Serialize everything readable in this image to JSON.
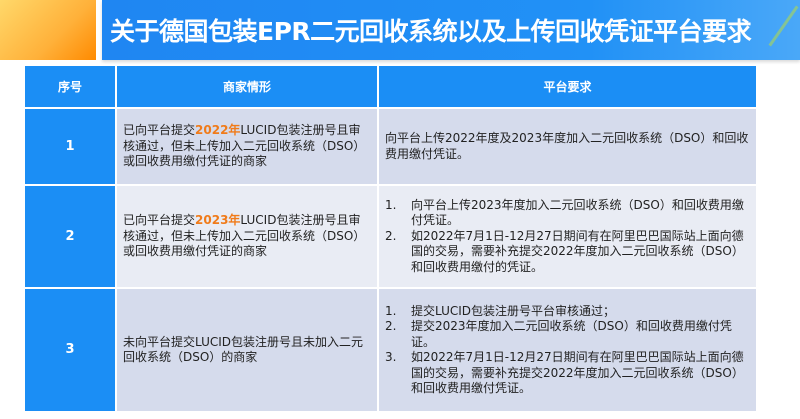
{
  "title": "关于德国包装EPR二元回收系统以及上传回收凭证平台要求",
  "colors": {
    "accent_blue": "#1b8ef5",
    "highlight_orange": "#f07b1a",
    "row_dark": "#d5dbec",
    "row_light": "#e9ecf4"
  },
  "table": {
    "headers": [
      "序号",
      "商家情形",
      "平台要求"
    ],
    "rows": [
      {
        "num": "1",
        "merchant_pre": "已向平台提交",
        "merchant_hl": "2022年",
        "merchant_post": "LUCID包装注册号且审核通过，但未上传加入二元回收系统（DSO）或回收费用缴付凭证的商家",
        "requirement": "向平台上传2022年度及2023年度加入二元回收系统（DSO）和回收费用缴付凭证。"
      },
      {
        "num": "2",
        "merchant_pre": "已向平台提交",
        "merchant_hl": "2023年",
        "merchant_post": "LUCID包装注册号且审核通过，但未上传加入二元回收系统（DSO）或回收费用缴付凭证的商家",
        "requirements": [
          {
            "n": "1.",
            "text": "向平台上传2023年度加入二元回收系统（DSO）和回收费用缴付凭证。"
          },
          {
            "n": "2.",
            "text": "如2022年7月1日-12月27日期间有在阿里巴巴国际站上面向德国的交易，需要补充提交2022年度加入二元回收系统（DSO）和回收费用缴付的凭证。"
          }
        ]
      },
      {
        "num": "3",
        "merchant": "未向平台提交LUCID包装注册号且未加入二元回收系统（DSO）的商家",
        "requirements": [
          {
            "n": "1.",
            "text": "提交LUCID包装注册号平台审核通过；"
          },
          {
            "n": "2.",
            "text": "提交2023年度加入二元回收系统（DSO）和回收费用缴付凭证。"
          },
          {
            "n": "3.",
            "text": "如2022年7月1日-12月27日期间有在阿里巴巴国际站上面向德国的交易，需要补充提交2022年度加入二元回收系统（DSO）和回收费用缴付凭证。"
          }
        ]
      }
    ]
  }
}
